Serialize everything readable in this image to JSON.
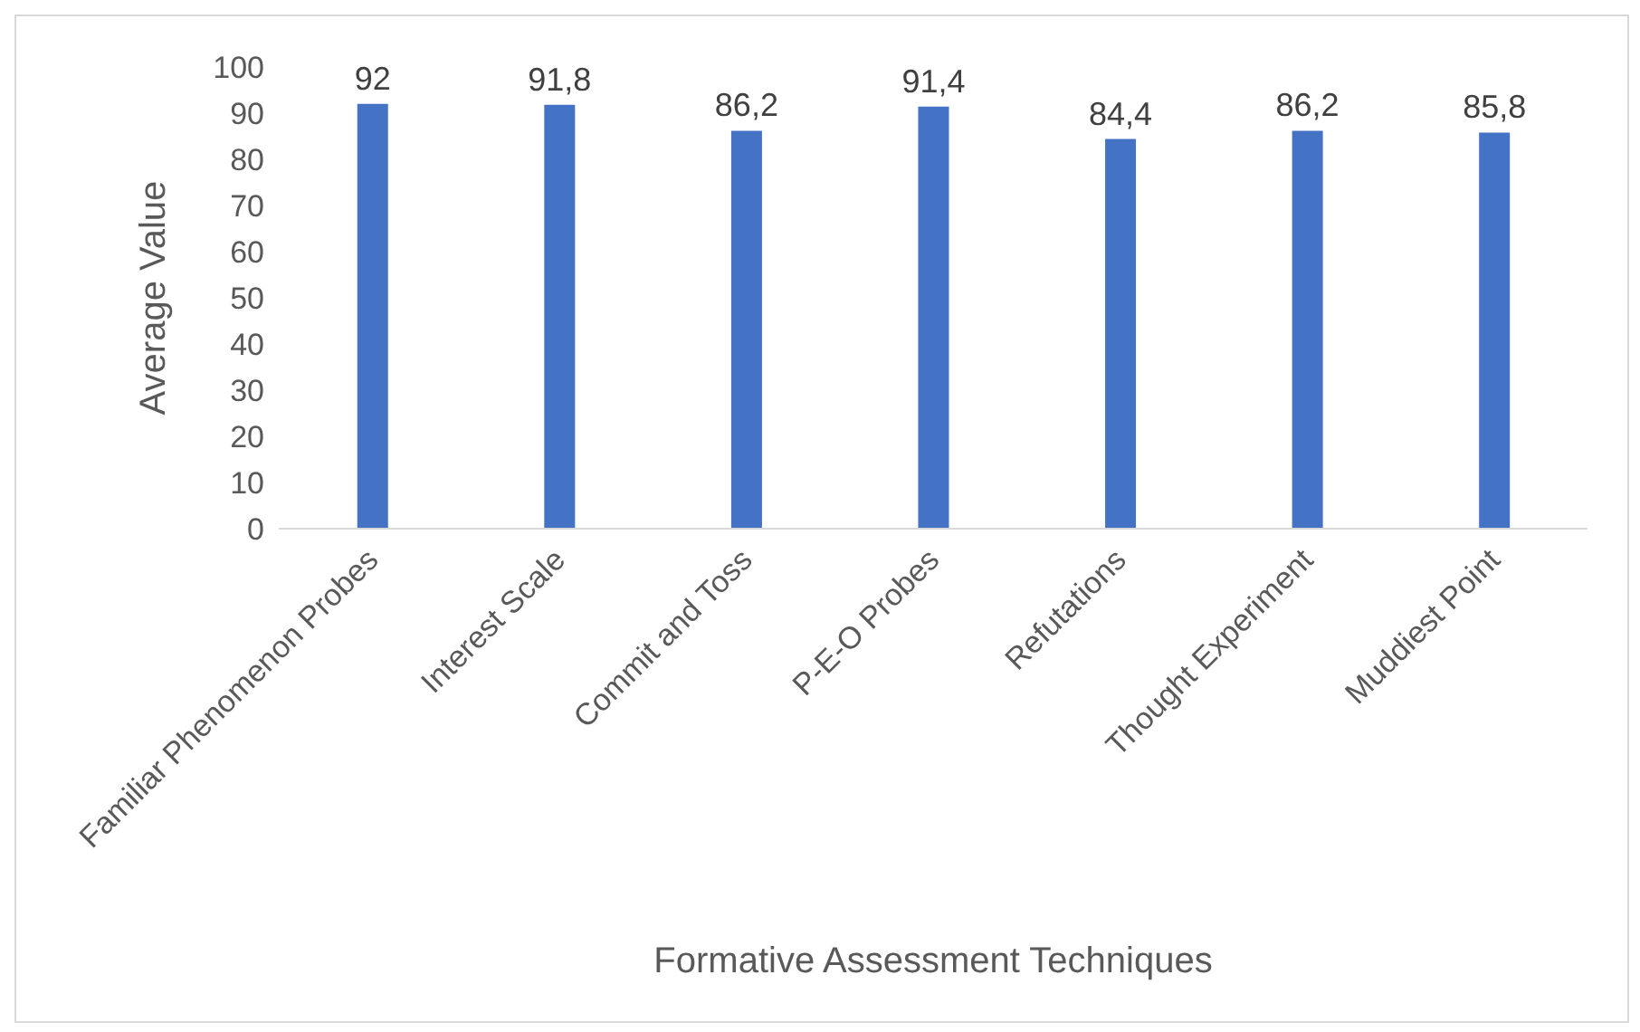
{
  "chart_data": {
    "type": "bar",
    "xlabel": "Formative Assessment Techniques",
    "ylabel": "Average Value",
    "categories": [
      "Familiar Phenomenon Probes",
      "Interest Scale",
      "Commit and Toss",
      "P-E-O Probes",
      "Refutations",
      "Thought Experiment",
      "Muddiest Point"
    ],
    "values": [
      92,
      91.8,
      86.2,
      91.4,
      84.4,
      86.2,
      85.8
    ],
    "value_labels": [
      "92",
      "91,8",
      "86,2",
      "91,4",
      "84,4",
      "86,2",
      "85,8"
    ],
    "color": "#4472c4",
    "ylim": [
      0,
      100
    ],
    "yticks": [
      0,
      10,
      20,
      30,
      40,
      50,
      60,
      70,
      80,
      90,
      100
    ],
    "grid": false,
    "legend": false
  }
}
